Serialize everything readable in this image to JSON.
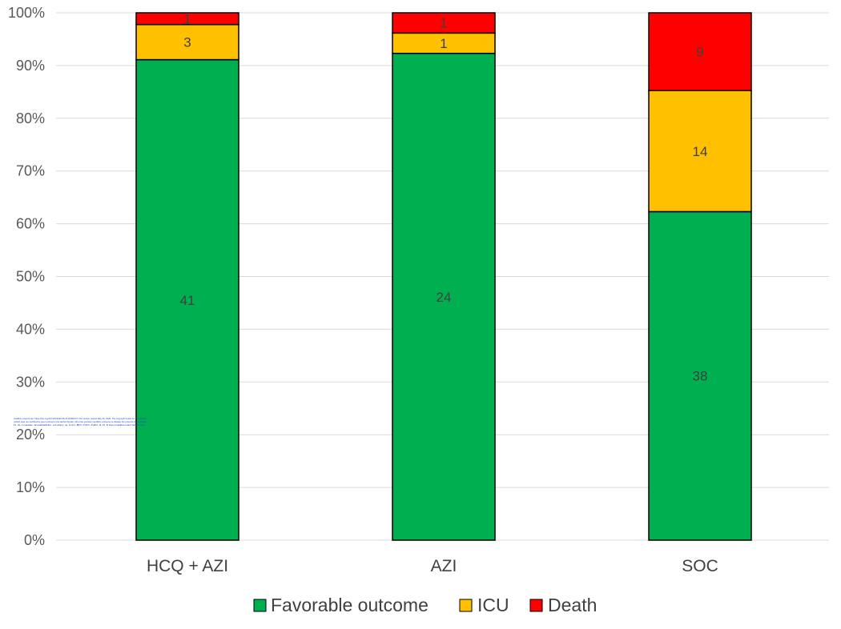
{
  "colors": {
    "favorable": "#00b050",
    "icu": "#ffc000",
    "death": "#ff0000",
    "grid": "#d9d9d9",
    "text": "#404040"
  },
  "chart_data": {
    "type": "bar",
    "stacked": "percent",
    "categories": [
      "HCQ + AZI",
      "AZI",
      "SOC"
    ],
    "series": [
      {
        "name": "Favorable outcome",
        "values": [
          41,
          24,
          38
        ],
        "color": "#00b050"
      },
      {
        "name": "ICU",
        "values": [
          3,
          1,
          14
        ],
        "color": "#ffc000"
      },
      {
        "name": "Death",
        "values": [
          1,
          1,
          9
        ],
        "color": "#ff0000"
      }
    ],
    "title": "",
    "xlabel": "",
    "ylabel": "",
    "ylim": [
      0,
      100
    ],
    "yticks": [
      "0%",
      "10%",
      "20%",
      "30%",
      "40%",
      "50%",
      "60%",
      "70%",
      "80%",
      "90%",
      "100%"
    ],
    "grid": true,
    "legend": "bottom"
  },
  "stamp_lines": [
    "medRxiv preprint doi: https://doi.org/10.1101/2020.05.22.20099747; this version posted May 26, 2020. The copyright holder for this preprint",
    "(which was not certified by peer review) is the author/funder, who has granted medRxiv a license to display the preprint in perpetuity.",
    "It is made available under a CC-BY-NC-ND 4.0 International license."
  ]
}
